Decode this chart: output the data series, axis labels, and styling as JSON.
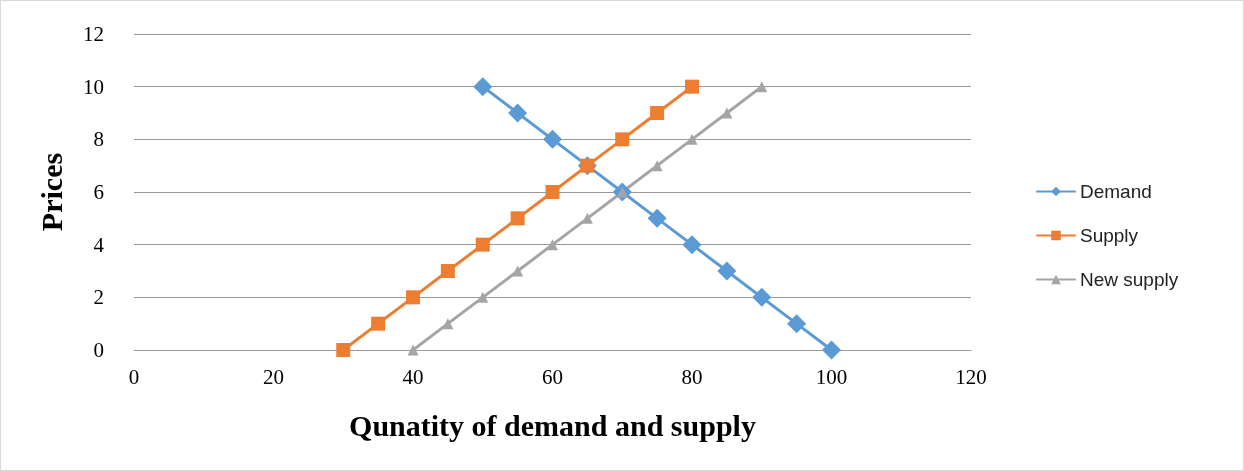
{
  "chart_data": {
    "type": "line",
    "xlabel": "Qunatity of demand and supply",
    "ylabel": "Prices",
    "series": [
      {
        "name": "Demand",
        "color": "#5b9bd5",
        "marker": "diamond",
        "x": [
          50,
          55,
          60,
          65,
          70,
          75,
          80,
          85,
          90,
          95,
          100
        ],
        "values": [
          10,
          9,
          8,
          7,
          6,
          5,
          4,
          3,
          2,
          1,
          0
        ]
      },
      {
        "name": "Supply",
        "color": "#ed7d31",
        "marker": "square",
        "x": [
          30,
          35,
          40,
          45,
          50,
          55,
          60,
          65,
          70,
          75,
          80
        ],
        "values": [
          0,
          1,
          2,
          3,
          4,
          5,
          6,
          7,
          8,
          9,
          10
        ]
      },
      {
        "name": "New supply",
        "color": "#a5a5a5",
        "marker": "triangle",
        "x": [
          40,
          45,
          50,
          55,
          60,
          65,
          70,
          75,
          80,
          85,
          90
        ],
        "values": [
          0,
          1,
          2,
          3,
          4,
          5,
          6,
          7,
          8,
          9,
          10
        ]
      }
    ],
    "xlim": [
      0,
      120
    ],
    "xticks": [
      0,
      20,
      40,
      60,
      80,
      100,
      120
    ],
    "ylim": [
      0,
      12
    ],
    "yticks": [
      0,
      2,
      4,
      6,
      8,
      10,
      12
    ],
    "grid": "y",
    "legend": "right",
    "line_style": "solid"
  }
}
